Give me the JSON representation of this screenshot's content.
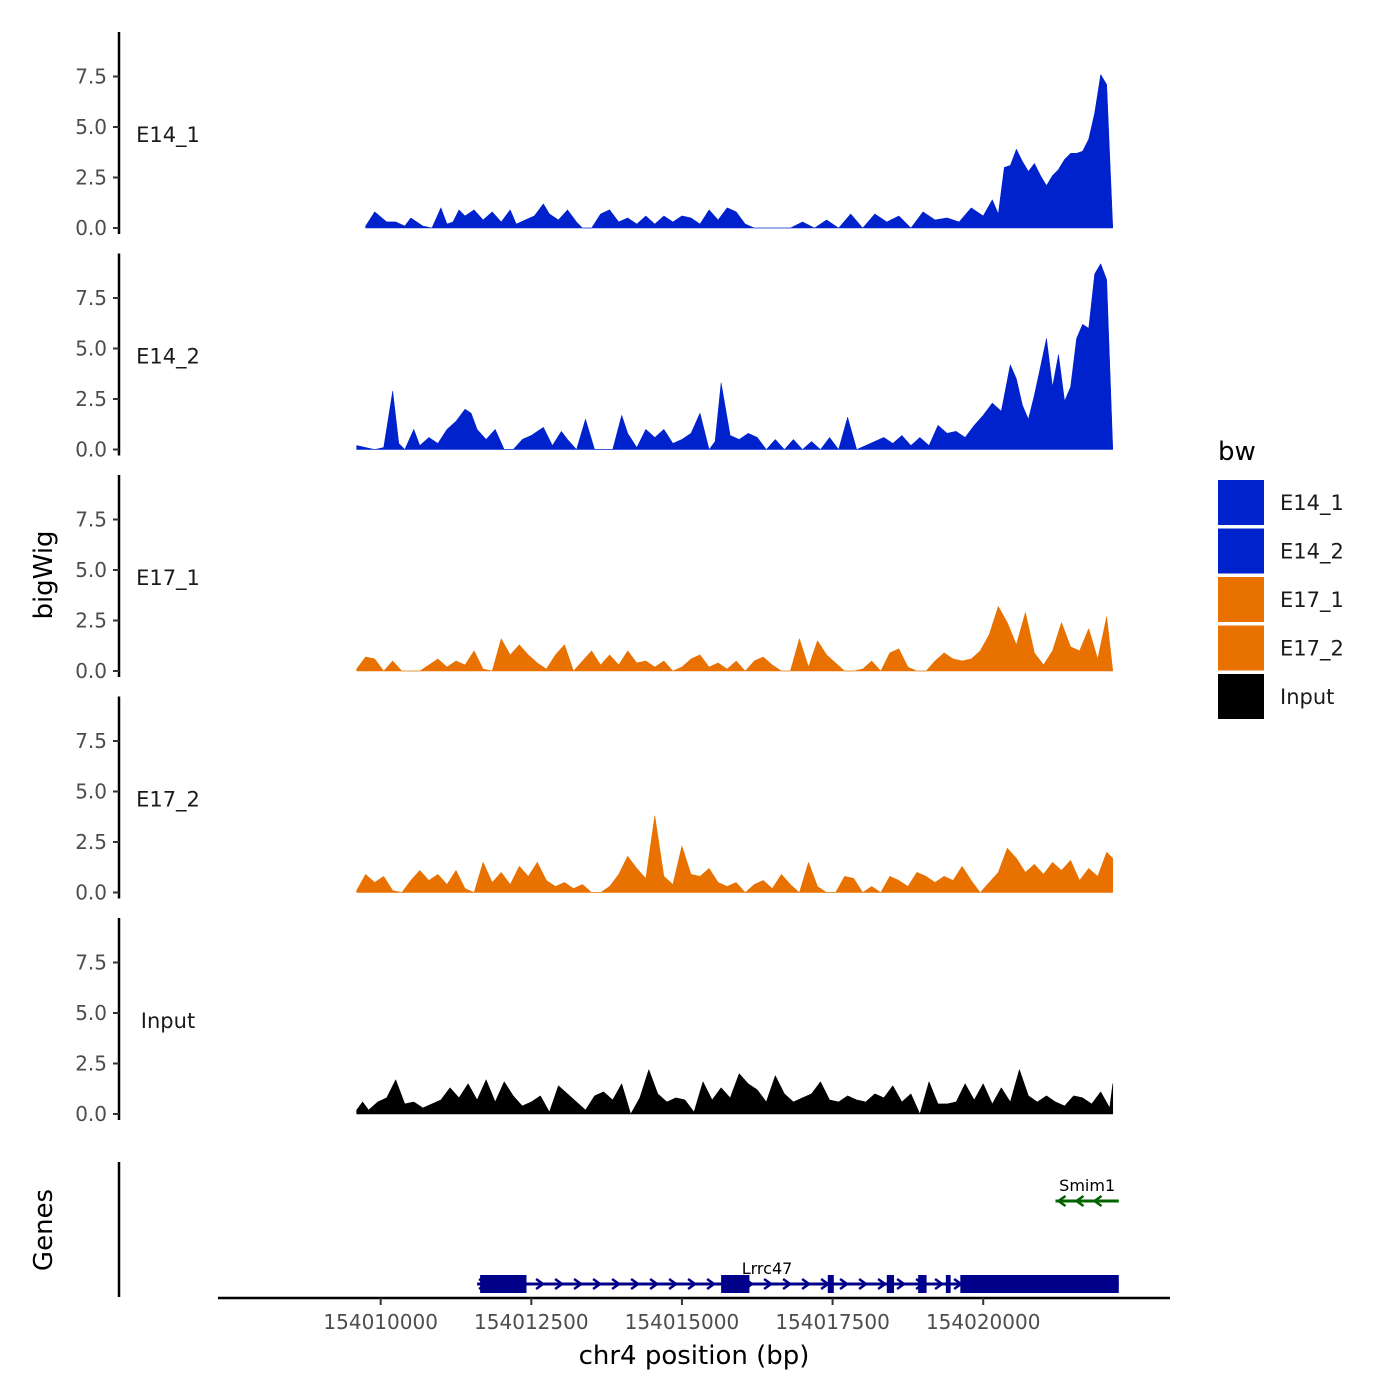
{
  "chart_data": {
    "type": "area",
    "title": "",
    "xlabel": "chr4 position (bp)",
    "ylabel": "bigWig",
    "genes_label": "Genes",
    "xlim": [
      154007300,
      154023100
    ],
    "x_ticks": [
      154010000,
      154012500,
      154015000,
      154017500,
      154020000
    ],
    "x_tick_labels": [
      "154010000",
      "154012500",
      "154015000",
      "154017500",
      "154020000"
    ],
    "ylim": [
      0,
      9.6
    ],
    "y_ticks": [
      0,
      2.5,
      5,
      7.5
    ],
    "y_tick_labels": [
      "0.0",
      "2.5",
      "5.0",
      "7.5"
    ],
    "legend": {
      "title": "bw",
      "position": "right",
      "entries": [
        {
          "label": "E14_1",
          "color": "#0022cc"
        },
        {
          "label": "E14_2",
          "color": "#0022cc"
        },
        {
          "label": "E17_1",
          "color": "#e87100"
        },
        {
          "label": "E17_2",
          "color": "#e87100"
        },
        {
          "label": "Input",
          "color": "#000000"
        }
      ]
    },
    "series": [
      {
        "name": "E14_1",
        "color": "#0022cc",
        "x": [
          154009750,
          154009900,
          154010100,
          154010250,
          154010400,
          154010500,
          154010700,
          154010850,
          154011000,
          154011100,
          154011200,
          154011300,
          154011400,
          154011550,
          154011700,
          154011850,
          154012000,
          154012150,
          154012250,
          154012400,
          154012550,
          154012700,
          154012800,
          154012950,
          154013100,
          154013250,
          154013350,
          154013500,
          154013650,
          154013800,
          154013950,
          154014100,
          154014250,
          154014400,
          154014550,
          154014700,
          154014850,
          154015000,
          154015150,
          154015300,
          154015450,
          154015600,
          154015750,
          154015900,
          154016050,
          154016200,
          154016400,
          154016600,
          154016800,
          154017000,
          154017200,
          154017400,
          154017600,
          154017800,
          154018000,
          154018200,
          154018400,
          154018600,
          154018800,
          154019000,
          154019200,
          154019400,
          154019600,
          154019800,
          154020000,
          154020150,
          154020250,
          154020350,
          154020450,
          154020550,
          154020650,
          154020750,
          154020850,
          154020950,
          154021050,
          154021150,
          154021250,
          154021350,
          154021450,
          154021550,
          154021650,
          154021750,
          154021850,
          154021950,
          154022050,
          154022150
        ],
        "values": [
          0.1,
          0.8,
          0.3,
          0.3,
          0.1,
          0.5,
          0.1,
          0.0,
          1.0,
          0.2,
          0.3,
          0.9,
          0.6,
          0.9,
          0.4,
          0.8,
          0.3,
          0.9,
          0.2,
          0.4,
          0.6,
          1.2,
          0.7,
          0.4,
          0.9,
          0.3,
          0.0,
          0.0,
          0.7,
          0.9,
          0.3,
          0.5,
          0.2,
          0.6,
          0.2,
          0.6,
          0.3,
          0.6,
          0.5,
          0.2,
          0.9,
          0.4,
          1.0,
          0.8,
          0.2,
          0.0,
          0.0,
          0.0,
          0.0,
          0.3,
          0.0,
          0.4,
          0.0,
          0.7,
          0.0,
          0.7,
          0.3,
          0.6,
          0.0,
          0.8,
          0.4,
          0.5,
          0.3,
          1.0,
          0.6,
          1.4,
          0.7,
          3.0,
          3.1,
          3.9,
          3.3,
          2.8,
          3.2,
          2.6,
          2.1,
          2.6,
          2.9,
          3.4,
          3.7,
          3.7,
          3.8,
          4.4,
          5.7,
          7.6,
          7.1,
          0.0
        ]
      },
      {
        "name": "E14_2",
        "color": "#0022cc",
        "x": [
          154009600,
          154009750,
          154009900,
          154010050,
          154010200,
          154010300,
          154010400,
          154010550,
          154010650,
          154010800,
          154010950,
          154011100,
          154011250,
          154011400,
          154011500,
          154011600,
          154011750,
          154011900,
          154012050,
          154012200,
          154012350,
          154012500,
          154012700,
          154012850,
          154013000,
          154013100,
          154013250,
          154013400,
          154013550,
          154013700,
          154013850,
          154014000,
          154014100,
          154014250,
          154014400,
          154014550,
          154014700,
          154014850,
          154015000,
          154015150,
          154015300,
          154015450,
          154015550,
          154015650,
          154015800,
          154015950,
          154016100,
          154016250,
          154016400,
          154016550,
          154016700,
          154016850,
          154017000,
          154017150,
          154017300,
          154017450,
          154017600,
          154017750,
          154017900,
          154018050,
          154018200,
          154018350,
          154018500,
          154018650,
          154018800,
          154018950,
          154019100,
          154019250,
          154019400,
          154019550,
          154019700,
          154019850,
          154020000,
          154020150,
          154020300,
          154020450,
          154020550,
          154020650,
          154020750,
          154020850,
          154020950,
          154021050,
          154021150,
          154021250,
          154021350,
          154021450,
          154021550,
          154021650,
          154021750,
          154021850,
          154021950,
          154022050,
          154022150
        ],
        "values": [
          0.2,
          0.1,
          0.0,
          0.1,
          2.9,
          0.3,
          0.0,
          1.0,
          0.2,
          0.6,
          0.3,
          1.0,
          1.4,
          2.0,
          1.8,
          1.0,
          0.5,
          1.0,
          0.0,
          0.0,
          0.5,
          0.7,
          1.1,
          0.2,
          0.9,
          0.5,
          0.0,
          1.5,
          0.0,
          0.0,
          0.0,
          1.7,
          0.8,
          0.1,
          1.0,
          0.6,
          1.0,
          0.3,
          0.5,
          0.8,
          1.8,
          0.0,
          0.4,
          3.3,
          0.7,
          0.5,
          0.8,
          0.6,
          0.0,
          0.5,
          0.0,
          0.5,
          0.0,
          0.4,
          0.0,
          0.6,
          0.0,
          1.6,
          0.0,
          0.2,
          0.4,
          0.6,
          0.3,
          0.7,
          0.2,
          0.6,
          0.2,
          1.2,
          0.8,
          0.9,
          0.6,
          1.2,
          1.7,
          2.3,
          1.9,
          4.2,
          3.5,
          2.2,
          1.5,
          2.7,
          4.1,
          5.5,
          3.1,
          4.7,
          2.4,
          3.1,
          5.5,
          6.2,
          6.0,
          8.7,
          9.2,
          8.4,
          0.0
        ]
      },
      {
        "name": "E17_1",
        "color": "#e87100",
        "x": [
          154009600,
          154009750,
          154009900,
          154010050,
          154010200,
          154010350,
          154010500,
          154010650,
          154010800,
          154010950,
          154011100,
          154011250,
          154011400,
          154011550,
          154011700,
          154011850,
          154012000,
          154012150,
          154012300,
          154012450,
          154012600,
          154012750,
          154012900,
          154013050,
          154013200,
          154013350,
          154013500,
          154013650,
          154013800,
          154013950,
          154014100,
          154014250,
          154014400,
          154014550,
          154014700,
          154014850,
          154015000,
          154015150,
          154015300,
          154015450,
          154015600,
          154015750,
          154015900,
          154016050,
          154016200,
          154016350,
          154016500,
          154016650,
          154016800,
          154016950,
          154017100,
          154017250,
          154017400,
          154017550,
          154017700,
          154017850,
          154018000,
          154018150,
          154018300,
          154018450,
          154018600,
          154018750,
          154018900,
          154019050,
          154019200,
          154019350,
          154019500,
          154019650,
          154019800,
          154019950,
          154020100,
          154020250,
          154020400,
          154020550,
          154020700,
          154020850,
          154021000,
          154021150,
          154021300,
          154021450,
          154021600,
          154021750,
          154021900,
          154022050,
          154022150
        ],
        "values": [
          0.1,
          0.7,
          0.6,
          0.0,
          0.5,
          0.0,
          0.0,
          0.0,
          0.3,
          0.6,
          0.2,
          0.5,
          0.3,
          1.0,
          0.1,
          0.0,
          1.6,
          0.8,
          1.3,
          0.8,
          0.4,
          0.1,
          0.8,
          1.3,
          0.0,
          0.5,
          1.0,
          0.3,
          0.8,
          0.3,
          1.0,
          0.4,
          0.5,
          0.2,
          0.5,
          0.0,
          0.2,
          0.6,
          0.8,
          0.2,
          0.4,
          0.1,
          0.5,
          0.0,
          0.5,
          0.7,
          0.3,
          0.0,
          0.0,
          1.6,
          0.2,
          1.5,
          0.8,
          0.4,
          0.0,
          0.0,
          0.1,
          0.5,
          0.0,
          0.9,
          1.1,
          0.2,
          0.0,
          0.0,
          0.5,
          0.9,
          0.6,
          0.5,
          0.6,
          1.0,
          1.8,
          3.2,
          2.4,
          1.3,
          2.9,
          0.9,
          0.3,
          1.0,
          2.4,
          1.2,
          1.0,
          2.1,
          0.6,
          2.7,
          0.0
        ]
      },
      {
        "name": "E17_2",
        "color": "#e87100",
        "x": [
          154009600,
          154009750,
          154009900,
          154010050,
          154010200,
          154010350,
          154010500,
          154010650,
          154010800,
          154010950,
          154011100,
          154011250,
          154011400,
          154011550,
          154011700,
          154011850,
          154012000,
          154012150,
          154012300,
          154012450,
          154012600,
          154012750,
          154012900,
          154013050,
          154013200,
          154013350,
          154013500,
          154013650,
          154013800,
          154013950,
          154014100,
          154014250,
          154014400,
          154014550,
          154014700,
          154014850,
          154015000,
          154015150,
          154015300,
          154015450,
          154015600,
          154015750,
          154015900,
          154016050,
          154016200,
          154016350,
          154016500,
          154016650,
          154016800,
          154016950,
          154017100,
          154017250,
          154017400,
          154017550,
          154017700,
          154017850,
          154018000,
          154018150,
          154018300,
          154018450,
          154018600,
          154018750,
          154018900,
          154019050,
          154019200,
          154019350,
          154019500,
          154019650,
          154019800,
          154019950,
          154020100,
          154020250,
          154020400,
          154020550,
          154020700,
          154020850,
          154021000,
          154021150,
          154021300,
          154021450,
          154021600,
          154021750,
          154021900,
          154022050,
          154022150
        ],
        "values": [
          0.1,
          0.9,
          0.5,
          0.8,
          0.1,
          0.0,
          0.6,
          1.1,
          0.6,
          0.9,
          0.4,
          1.1,
          0.2,
          0.0,
          1.5,
          0.5,
          1.0,
          0.4,
          1.3,
          0.8,
          1.5,
          0.6,
          0.3,
          0.5,
          0.2,
          0.4,
          0.0,
          0.0,
          0.3,
          0.9,
          1.8,
          1.2,
          0.7,
          3.8,
          0.8,
          0.4,
          2.3,
          0.9,
          0.8,
          1.2,
          0.5,
          0.3,
          0.5,
          0.0,
          0.4,
          0.6,
          0.2,
          0.9,
          0.4,
          0.0,
          1.5,
          0.3,
          0.0,
          0.0,
          0.8,
          0.7,
          0.0,
          0.3,
          0.0,
          0.8,
          0.6,
          0.3,
          1.0,
          0.8,
          0.5,
          0.8,
          0.6,
          1.3,
          0.6,
          0.0,
          0.5,
          1.0,
          2.2,
          1.7,
          1.0,
          1.4,
          0.9,
          1.5,
          1.1,
          1.6,
          0.6,
          1.2,
          0.8,
          2.0,
          1.7
        ]
      },
      {
        "name": "Input",
        "color": "#000000",
        "x": [
          154009600,
          154009700,
          154009800,
          154009950,
          154010100,
          154010250,
          154010400,
          154010550,
          154010700,
          154010850,
          154011000,
          154011150,
          154011300,
          154011450,
          154011600,
          154011750,
          154011900,
          154012050,
          154012200,
          154012350,
          154012500,
          154012650,
          154012800,
          154012950,
          154013100,
          154013250,
          154013400,
          154013550,
          154013700,
          154013850,
          154014000,
          154014150,
          154014300,
          154014450,
          154014600,
          154014750,
          154014900,
          154015050,
          154015200,
          154015350,
          154015500,
          154015650,
          154015800,
          154015950,
          154016100,
          154016250,
          154016400,
          154016550,
          154016700,
          154016850,
          154017000,
          154017150,
          154017300,
          154017450,
          154017600,
          154017750,
          154017900,
          154018050,
          154018200,
          154018350,
          154018500,
          154018650,
          154018800,
          154018950,
          154019100,
          154019250,
          154019400,
          154019550,
          154019700,
          154019850,
          154020000,
          154020150,
          154020300,
          154020450,
          154020600,
          154020750,
          154020900,
          154021050,
          154021200,
          154021350,
          154021500,
          154021650,
          154021800,
          154021950,
          154022100,
          154022150
        ],
        "values": [
          0.2,
          0.6,
          0.2,
          0.6,
          0.8,
          1.7,
          0.5,
          0.6,
          0.3,
          0.5,
          0.7,
          1.3,
          0.8,
          1.5,
          0.7,
          1.7,
          0.6,
          1.6,
          0.9,
          0.4,
          0.6,
          0.9,
          0.1,
          1.4,
          1.0,
          0.6,
          0.2,
          0.9,
          1.1,
          0.7,
          1.5,
          0.0,
          0.8,
          2.2,
          1.0,
          0.6,
          0.8,
          0.7,
          0.1,
          1.6,
          0.7,
          1.3,
          0.8,
          2.0,
          1.5,
          1.2,
          0.6,
          1.9,
          1.0,
          0.6,
          0.8,
          1.0,
          1.6,
          0.7,
          0.6,
          0.9,
          0.7,
          0.6,
          1.0,
          0.8,
          1.4,
          0.6,
          1.0,
          0.0,
          1.6,
          0.5,
          0.5,
          0.6,
          1.5,
          0.7,
          1.5,
          0.5,
          1.3,
          0.6,
          2.2,
          0.9,
          0.6,
          0.9,
          0.6,
          0.4,
          0.9,
          0.8,
          0.5,
          1.1,
          0.3,
          1.5
        ]
      }
    ],
    "genes": [
      {
        "name": "Lrrc47",
        "strand": "+",
        "color": "#00008b",
        "start": 154011600,
        "end": 154022250,
        "exons": [
          [
            154011650,
            154012420
          ],
          [
            154015650,
            154016120
          ],
          [
            154017420,
            154017520
          ],
          [
            154018400,
            154018520
          ],
          [
            154018920,
            154019060
          ],
          [
            154019380,
            154019460
          ],
          [
            154019620,
            154022250
          ]
        ]
      },
      {
        "name": "Smim1",
        "strand": "-",
        "color": "#006400",
        "start": 154021200,
        "end": 154022250,
        "exons": []
      }
    ]
  }
}
